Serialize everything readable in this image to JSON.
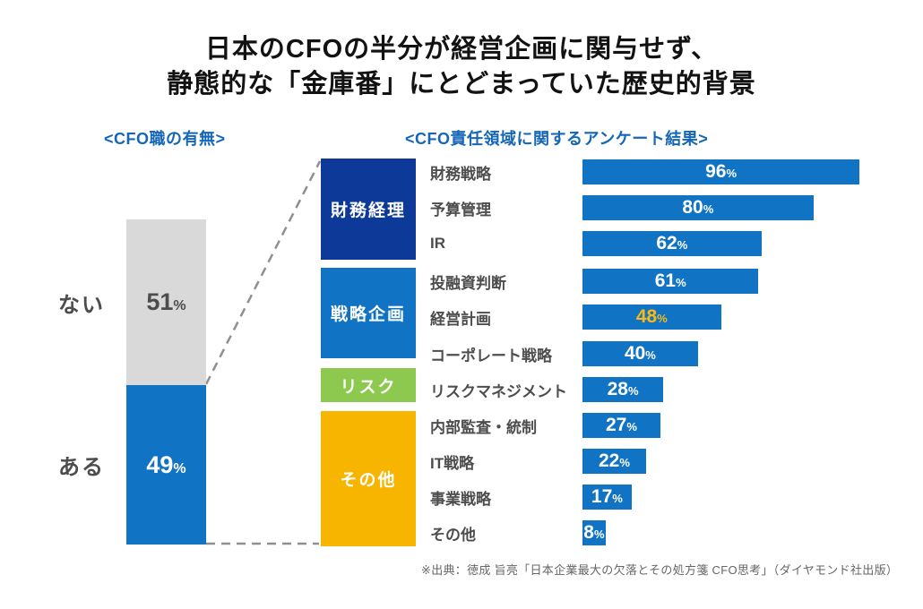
{
  "title": {
    "line1": "日本のCFOの半分が経営企画に関与せず、",
    "line2": "静態的な「金庫番」にとどまっていた歴史的背景"
  },
  "left_chart": {
    "header": "<CFO職の有無>",
    "segments": [
      {
        "label": "ない",
        "value": 51,
        "unit": "%",
        "bar_color": "#d9d9d9",
        "value_color": "#4d4d4d"
      },
      {
        "label": "ある",
        "value": 49,
        "unit": "%",
        "bar_color": "#1173c4",
        "value_color": "#ffffff"
      }
    ]
  },
  "right_chart": {
    "header": "<CFO責任領域に関するアンケート結果>",
    "bar_color": "#1173c4",
    "unit": "%",
    "groups": [
      {
        "label": "財務経理",
        "color": "#0d3a99",
        "text_color": "#ffffff"
      },
      {
        "label": "戦略企画",
        "color": "#1173c4",
        "text_color": "#ffffff"
      },
      {
        "label": "リスク",
        "color": "#8dc94f",
        "text_color": "#ffffff"
      },
      {
        "label": "その他",
        "color": "#f8b500",
        "text_color": "#ffffff"
      }
    ],
    "rows": [
      {
        "label": "財務戦略",
        "value": 96
      },
      {
        "label": "予算管理",
        "value": 80
      },
      {
        "label": "IR",
        "value": 62
      },
      {
        "label": "投融資判断",
        "value": 61
      },
      {
        "label": "経営計画",
        "value": 48,
        "highlight": true,
        "value_color": "#fdb913"
      },
      {
        "label": "コーポレート戦略",
        "value": 40
      },
      {
        "label": "リスクマネジメント",
        "value": 28
      },
      {
        "label": "内部監査・統制",
        "value": 27
      },
      {
        "label": "IT戦略",
        "value": 22
      },
      {
        "label": "事業戦略",
        "value": 17
      },
      {
        "label": "その他",
        "value": 8
      }
    ]
  },
  "source": "※出典：徳成 旨亮「日本企業最大の欠落とその処方箋 CFO思考」（ダイヤモンド社出版）",
  "connector_color": "#8f8f8f",
  "chart_data": [
    {
      "type": "bar",
      "title": "<CFO職の有無>",
      "orientation": "vertical",
      "stacked": true,
      "categories": [
        "ない",
        "ある"
      ],
      "values": [
        51,
        49
      ],
      "unit": "%",
      "colors": [
        "#d9d9d9",
        "#1173c4"
      ],
      "ylim": [
        0,
        100
      ],
      "grid": false,
      "legend": false
    },
    {
      "type": "bar",
      "title": "<CFO責任領域に関するアンケート結果>",
      "orientation": "horizontal",
      "categories": [
        "財務戦略",
        "予算管理",
        "IR",
        "投融資判断",
        "経営計画",
        "コーポレート戦略",
        "リスクマネジメント",
        "内部監査・統制",
        "IT戦略",
        "事業戦略",
        "その他"
      ],
      "values": [
        96,
        80,
        62,
        61,
        48,
        40,
        28,
        27,
        22,
        17,
        8
      ],
      "unit": "%",
      "xlim": [
        0,
        100
      ],
      "grid": false,
      "legend": false,
      "bar_color": "#1173c4",
      "category_groups": [
        {
          "label": "財務経理",
          "categories": [
            "財務戦略",
            "予算管理",
            "IR"
          ],
          "color": "#0d3a99"
        },
        {
          "label": "戦略企画",
          "categories": [
            "投融資判断",
            "経営計画",
            "コーポレート戦略"
          ],
          "color": "#1173c4"
        },
        {
          "label": "リスク",
          "categories": [
            "リスクマネジメント"
          ],
          "color": "#8dc94f"
        },
        {
          "label": "その他",
          "categories": [
            "内部監査・統制",
            "IT戦略",
            "事業戦略",
            "その他"
          ],
          "color": "#f8b500"
        }
      ],
      "highlight": {
        "category": "経営計画",
        "value_label_color": "#fdb913"
      }
    }
  ]
}
